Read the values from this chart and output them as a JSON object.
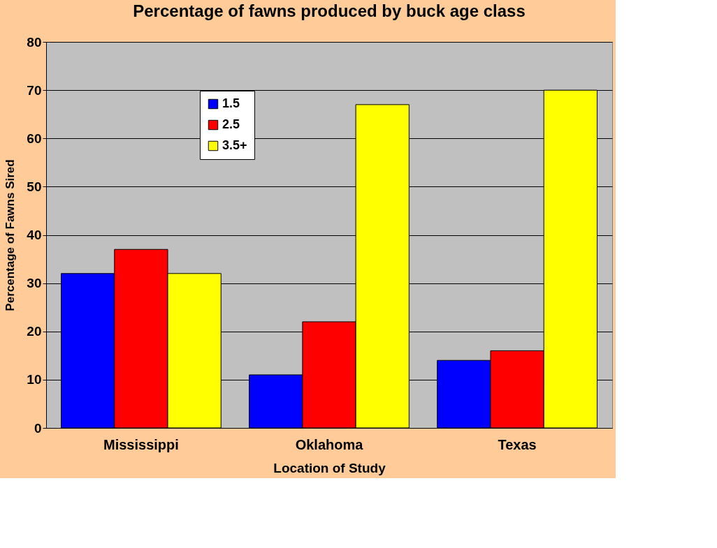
{
  "chart_data": {
    "type": "bar",
    "title": "Percentage of fawns produced by buck age class",
    "xlabel": "Location of Study",
    "ylabel": "Percentage of Fawns Sired",
    "categories": [
      "Mississippi",
      "Oklahoma",
      "Texas"
    ],
    "series": [
      {
        "name": "1.5",
        "color": "#0000ff",
        "values": [
          32,
          11,
          14
        ]
      },
      {
        "name": "2.5",
        "color": "#ff0000",
        "values": [
          37,
          22,
          16
        ]
      },
      {
        "name": "3.5+",
        "color": "#ffff00",
        "values": [
          32,
          67,
          70
        ]
      }
    ],
    "ylim": [
      0,
      80
    ],
    "yticks": [
      0,
      10,
      20,
      30,
      40,
      50,
      60,
      70,
      80
    ],
    "grid": "y",
    "legend": "top left"
  }
}
